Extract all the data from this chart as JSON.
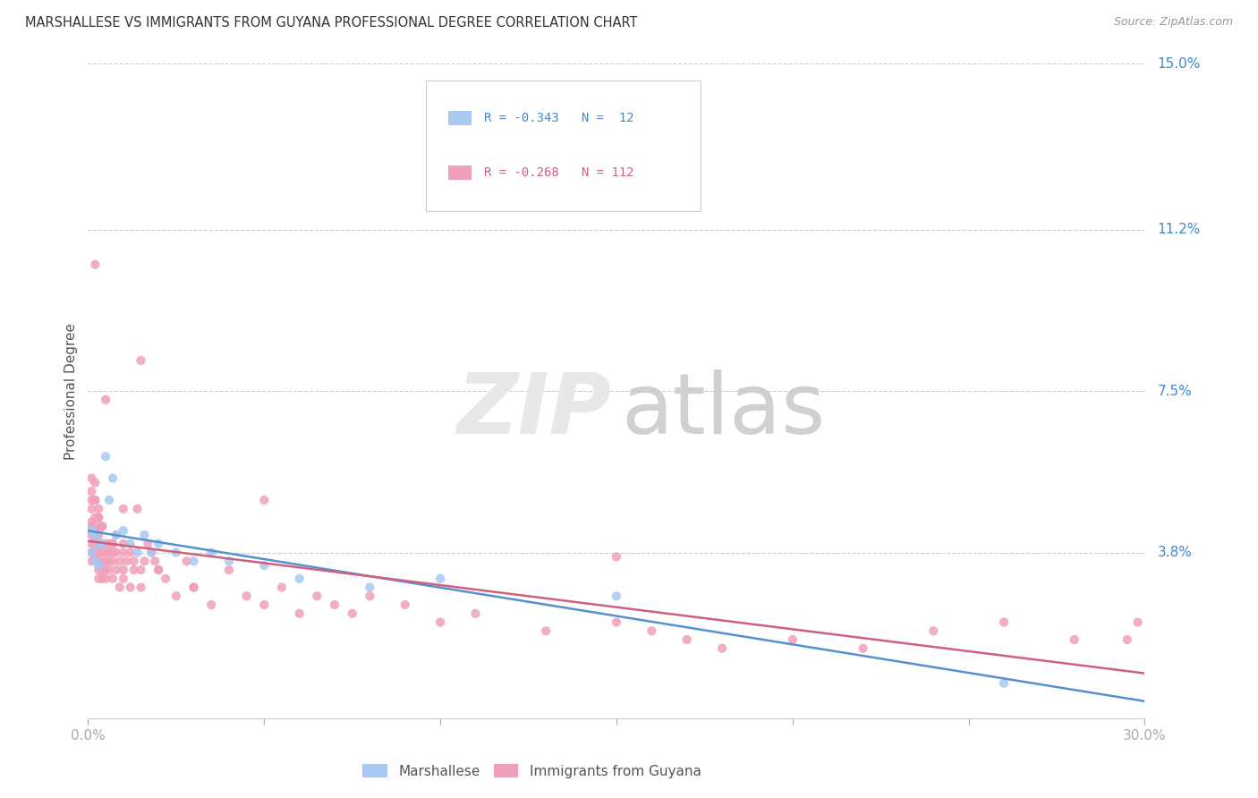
{
  "title": "MARSHALLESE VS IMMIGRANTS FROM GUYANA PROFESSIONAL DEGREE CORRELATION CHART",
  "source": "Source: ZipAtlas.com",
  "ylabel": "Professional Degree",
  "xlim": [
    0.0,
    0.3
  ],
  "ylim": [
    0.0,
    0.15
  ],
  "ytick_right_labels": [
    "15.0%",
    "11.2%",
    "7.5%",
    "3.8%"
  ],
  "ytick_right_values": [
    0.15,
    0.112,
    0.075,
    0.038
  ],
  "color_marshallese": "#a8c8f0",
  "color_guyana": "#f0a0b8",
  "color_trend_marshallese": "#5590d0",
  "color_trend_guyana": "#d06080",
  "marshallese_x": [
    0.001,
    0.001,
    0.002,
    0.002,
    0.003,
    0.003,
    0.004,
    0.005,
    0.006,
    0.007,
    0.008,
    0.01,
    0.012,
    0.014,
    0.016,
    0.018,
    0.02,
    0.025,
    0.03,
    0.035,
    0.04,
    0.05,
    0.06,
    0.08,
    0.1,
    0.15,
    0.26
  ],
  "marshallese_y": [
    0.043,
    0.038,
    0.042,
    0.036,
    0.04,
    0.035,
    0.04,
    0.06,
    0.05,
    0.055,
    0.042,
    0.043,
    0.04,
    0.038,
    0.042,
    0.038,
    0.04,
    0.038,
    0.036,
    0.038,
    0.036,
    0.035,
    0.032,
    0.03,
    0.032,
    0.028,
    0.008
  ],
  "guyana_x": [
    0.001,
    0.001,
    0.001,
    0.001,
    0.001,
    0.001,
    0.001,
    0.001,
    0.001,
    0.001,
    0.002,
    0.002,
    0.002,
    0.002,
    0.002,
    0.002,
    0.002,
    0.002,
    0.002,
    0.002,
    0.003,
    0.003,
    0.003,
    0.003,
    0.003,
    0.003,
    0.003,
    0.003,
    0.003,
    0.003,
    0.004,
    0.004,
    0.004,
    0.004,
    0.004,
    0.004,
    0.005,
    0.005,
    0.005,
    0.005,
    0.005,
    0.006,
    0.006,
    0.006,
    0.006,
    0.007,
    0.007,
    0.007,
    0.007,
    0.008,
    0.008,
    0.008,
    0.009,
    0.009,
    0.01,
    0.01,
    0.01,
    0.01,
    0.011,
    0.012,
    0.012,
    0.013,
    0.013,
    0.014,
    0.015,
    0.015,
    0.016,
    0.017,
    0.018,
    0.019,
    0.02,
    0.022,
    0.025,
    0.028,
    0.03,
    0.035,
    0.04,
    0.045,
    0.05,
    0.055,
    0.06,
    0.065,
    0.07,
    0.075,
    0.08,
    0.09,
    0.1,
    0.11,
    0.13,
    0.15,
    0.16,
    0.17,
    0.18,
    0.2,
    0.22,
    0.24,
    0.26,
    0.28,
    0.295,
    0.298,
    0.002,
    0.015,
    0.15,
    0.005,
    0.05,
    0.02,
    0.03,
    0.01,
    0.007,
    0.004,
    0.003,
    0.002,
    0.001
  ],
  "guyana_y": [
    0.048,
    0.052,
    0.045,
    0.042,
    0.04,
    0.043,
    0.05,
    0.036,
    0.038,
    0.044,
    0.046,
    0.042,
    0.038,
    0.05,
    0.043,
    0.041,
    0.036,
    0.054,
    0.037,
    0.04,
    0.044,
    0.042,
    0.04,
    0.046,
    0.038,
    0.036,
    0.048,
    0.034,
    0.032,
    0.043,
    0.04,
    0.036,
    0.038,
    0.044,
    0.032,
    0.034,
    0.04,
    0.036,
    0.038,
    0.032,
    0.034,
    0.04,
    0.038,
    0.034,
    0.036,
    0.04,
    0.036,
    0.032,
    0.038,
    0.042,
    0.034,
    0.038,
    0.036,
    0.03,
    0.038,
    0.034,
    0.04,
    0.032,
    0.036,
    0.038,
    0.03,
    0.036,
    0.034,
    0.048,
    0.03,
    0.034,
    0.036,
    0.04,
    0.038,
    0.036,
    0.034,
    0.032,
    0.028,
    0.036,
    0.03,
    0.026,
    0.034,
    0.028,
    0.026,
    0.03,
    0.024,
    0.028,
    0.026,
    0.024,
    0.028,
    0.026,
    0.022,
    0.024,
    0.02,
    0.022,
    0.02,
    0.018,
    0.016,
    0.018,
    0.016,
    0.02,
    0.022,
    0.018,
    0.018,
    0.022,
    0.104,
    0.082,
    0.037,
    0.073,
    0.05,
    0.034,
    0.03,
    0.048,
    0.04,
    0.044,
    0.046,
    0.05,
    0.055
  ]
}
